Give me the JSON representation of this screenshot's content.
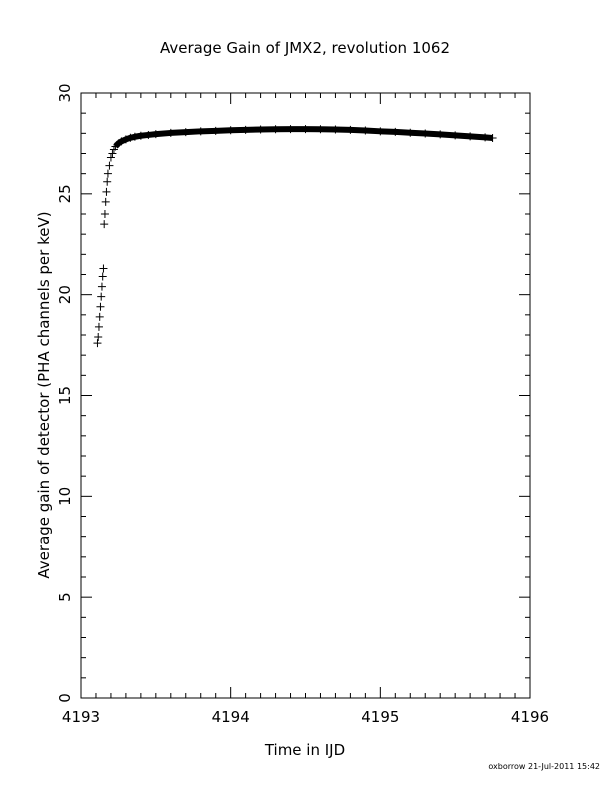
{
  "chart_data": {
    "type": "scatter",
    "title": "Average Gain of JMX2, revolution 1062",
    "xlabel": "Time in IJD",
    "ylabel": "Average gain of detector (PHA channels per keV)",
    "xlim": [
      4193,
      4196
    ],
    "ylim": [
      0,
      30
    ],
    "x_ticks": [
      "4193",
      "4194",
      "4195",
      "4196"
    ],
    "y_ticks": [
      "0",
      "5",
      "10",
      "15",
      "20",
      "25",
      "30"
    ],
    "marker": "plus",
    "color": "#000000",
    "grid": false,
    "series": [
      {
        "x": [
          4193.11,
          4193.115,
          4193.12,
          4193.125,
          4193.13,
          4193.135,
          4193.14,
          4193.145,
          4193.15,
          4193.155,
          4193.16,
          4193.165,
          4193.17,
          4193.175,
          4193.18,
          4193.19,
          4193.2,
          4193.21,
          4193.22,
          4193.23,
          4193.25,
          4193.27,
          4193.3,
          4193.33,
          4193.36,
          4193.4,
          4193.45,
          4193.5,
          4193.6,
          4193.7,
          4193.8,
          4193.9,
          4194.0,
          4194.1,
          4194.2,
          4194.3,
          4194.4,
          4194.5,
          4194.6,
          4194.7,
          4194.8,
          4194.9,
          4195.0,
          4195.1,
          4195.2,
          4195.3,
          4195.4,
          4195.5,
          4195.6,
          4195.7,
          4195.75
        ],
        "y": [
          17.6,
          17.9,
          18.4,
          18.9,
          19.4,
          19.9,
          20.4,
          20.9,
          21.3,
          23.5,
          24.0,
          24.6,
          25.1,
          25.6,
          26.0,
          26.4,
          26.8,
          27.0,
          27.2,
          27.35,
          27.5,
          27.6,
          27.7,
          27.78,
          27.83,
          27.88,
          27.92,
          27.96,
          28.02,
          28.06,
          28.1,
          28.12,
          28.15,
          28.17,
          28.19,
          28.2,
          28.21,
          28.21,
          28.2,
          28.19,
          28.17,
          28.14,
          28.1,
          28.07,
          28.03,
          27.99,
          27.95,
          27.9,
          27.85,
          27.8,
          27.77
        ]
      }
    ]
  },
  "footer": "oxborrow 21-Jul-2011 15:42"
}
